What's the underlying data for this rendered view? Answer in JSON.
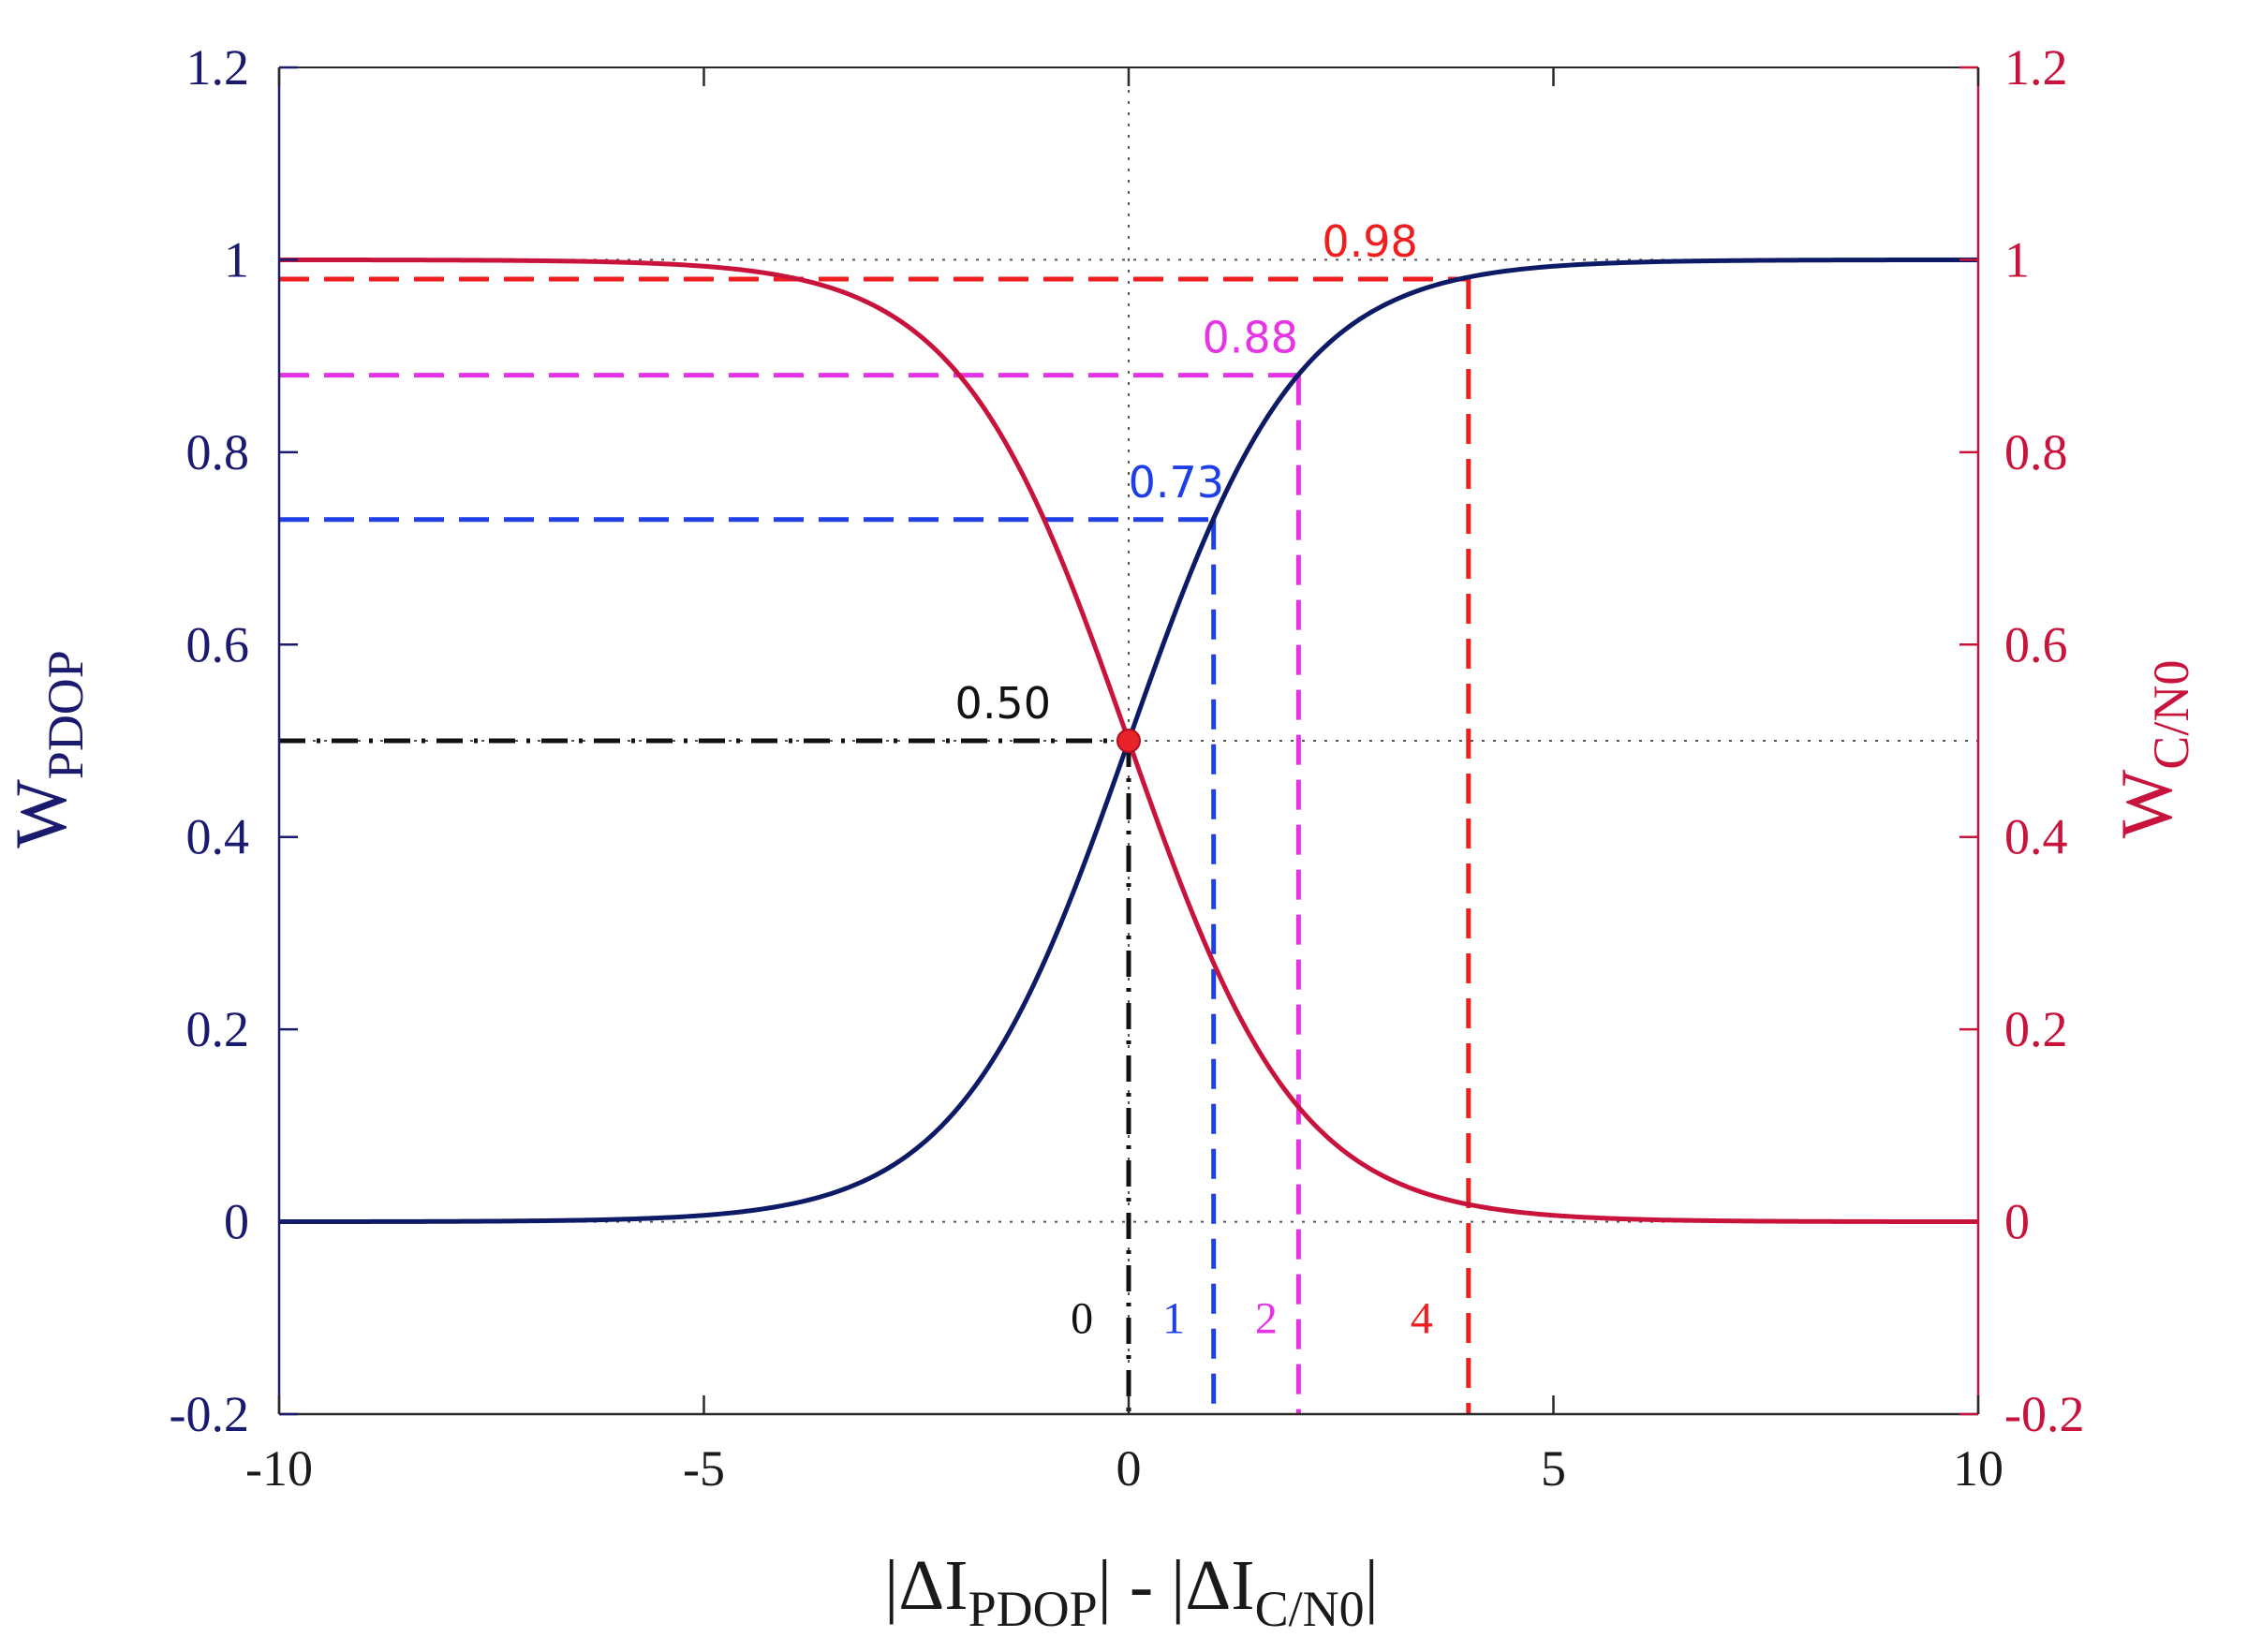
{
  "chart_data": {
    "type": "line",
    "xlabel": "|ΔI_PDOP| - |ΔI_C/N0|",
    "xlabel_parts": {
      "pre": "|ΔI",
      "sub1": "PDOP",
      "mid": "| - |ΔI",
      "sub2": "C/N0",
      "post": "|"
    },
    "ylabel_left": {
      "main": "W",
      "sub": "PDOP"
    },
    "ylabel_right": {
      "main": "W",
      "sub": "C/N0"
    },
    "xlim": [
      -10,
      10
    ],
    "ylim": [
      -0.2,
      1.2
    ],
    "xticks": [
      -10,
      -5,
      0,
      5,
      10
    ],
    "xtick_labels": [
      "-10",
      "-5",
      "0",
      "5",
      "10"
    ],
    "yticks": [
      -0.2,
      0,
      0.2,
      0.4,
      0.6,
      0.8,
      1,
      1.2
    ],
    "ytick_labels": [
      "-0.2",
      "0",
      "0.2",
      "0.4",
      "0.6",
      "0.8",
      "1",
      "1.2"
    ],
    "reference_lines_y": [
      0,
      0.5,
      1
    ],
    "reference_lines_x": [
      0
    ],
    "series": [
      {
        "name": "W_PDOP",
        "axis": "left",
        "color": "#0d1a66",
        "function": "logistic",
        "sign": 1,
        "x": [
          -10,
          -8,
          -6,
          -5,
          -4,
          -3,
          -2,
          -1,
          0,
          1,
          2,
          3,
          4,
          5,
          6,
          8,
          10
        ],
        "y": [
          0.0,
          0.0003,
          0.0025,
          0.0067,
          0.018,
          0.047,
          0.119,
          0.269,
          0.5,
          0.731,
          0.881,
          0.953,
          0.982,
          0.993,
          0.998,
          0.9997,
          1.0
        ]
      },
      {
        "name": "W_C/N0",
        "axis": "right",
        "color": "#c8143c",
        "function": "logistic",
        "sign": -1,
        "x": [
          -10,
          -8,
          -6,
          -5,
          -4,
          -3,
          -2,
          -1,
          0,
          1,
          2,
          3,
          4,
          5,
          6,
          8,
          10
        ],
        "y": [
          1.0,
          0.9997,
          0.998,
          0.993,
          0.982,
          0.953,
          0.881,
          0.731,
          0.5,
          0.269,
          0.119,
          0.047,
          0.018,
          0.007,
          0.0025,
          0.0003,
          0.0
        ]
      }
    ],
    "markers": [
      {
        "x": 0,
        "y": 0.5,
        "value_label": "0.50",
        "x_label": "0",
        "color": "#111111",
        "style": "dashdot"
      },
      {
        "x": 1,
        "y": 0.73,
        "value_label": "0.73",
        "x_label": "1",
        "color": "#1f3fe6",
        "style": "dashed"
      },
      {
        "x": 2,
        "y": 0.88,
        "value_label": "0.88",
        "x_label": "2",
        "color": "#e633e6",
        "style": "dashed"
      },
      {
        "x": 4,
        "y": 0.98,
        "value_label": "0.98",
        "x_label": "4",
        "color": "#f01e1e",
        "style": "dashed"
      }
    ],
    "intersection_point": {
      "x": 0,
      "y": 0.5,
      "color": "#e8232a"
    }
  },
  "colors": {
    "left_axis": "#1a1a6e",
    "right_axis": "#c8143c",
    "text": "#1a1a1a"
  }
}
